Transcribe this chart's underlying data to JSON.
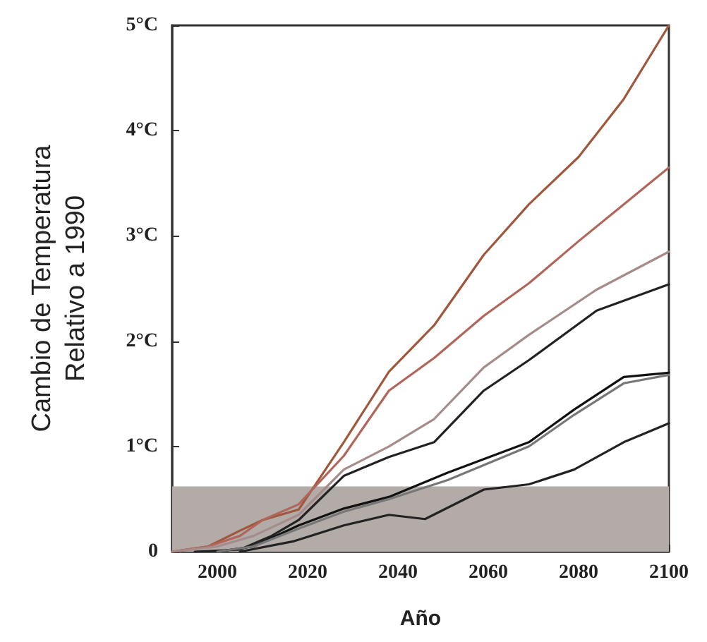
{
  "chart_data": {
    "type": "line",
    "xlabel": "Año",
    "ylabel": "Cambio de Temperatura\nRelativo a 1990",
    "xlim": [
      1990,
      2100
    ],
    "ylim": [
      0,
      5
    ],
    "xticks": [
      2000,
      2020,
      2040,
      2060,
      2080,
      2100
    ],
    "yticks": [
      {
        "value": 0,
        "label": "0"
      },
      {
        "value": 1,
        "label": "1°C"
      },
      {
        "value": 2,
        "label": "2°C"
      },
      {
        "value": 3,
        "label": "3°C"
      },
      {
        "value": 4,
        "label": "4°C"
      },
      {
        "value": 5,
        "label": "5°C"
      }
    ],
    "grid": false,
    "marker": "none",
    "line_style": "solid",
    "bands": [
      {
        "axis": "y",
        "from": 0,
        "to": 0.62,
        "color": "#b3aba8"
      }
    ],
    "series": [
      {
        "color": "#a0583c",
        "x": [
          1990,
          1998,
          2005,
          2010,
          2018,
          2028,
          2038,
          2048,
          2059,
          2069,
          2080,
          2090,
          2100
        ],
        "values": [
          0,
          0.05,
          0.2,
          0.3,
          0.4,
          1.04,
          1.71,
          2.15,
          2.82,
          3.3,
          3.75,
          4.3,
          5.0
        ]
      },
      {
        "color": "#b0665a",
        "x": [
          1990,
          1998,
          2005,
          2010,
          2018,
          2028,
          2038,
          2048,
          2059,
          2069,
          2080,
          2090,
          2100
        ],
        "values": [
          0,
          0.05,
          0.15,
          0.3,
          0.45,
          0.91,
          1.53,
          1.84,
          2.24,
          2.55,
          2.95,
          3.3,
          3.65
        ]
      },
      {
        "color": "#a58c8a",
        "x": [
          1990,
          2000,
          2008,
          2018,
          2028,
          2038,
          2048,
          2059,
          2069,
          2084,
          2100
        ],
        "values": [
          0,
          0.05,
          0.15,
          0.35,
          0.78,
          1.0,
          1.26,
          1.75,
          2.06,
          2.49,
          2.85
        ]
      },
      {
        "color": "#222222",
        "x": [
          1995,
          2005,
          2012,
          2018,
          2028,
          2038,
          2048,
          2059,
          2069,
          2084,
          2100
        ],
        "values": [
          0,
          0.02,
          0.15,
          0.3,
          0.72,
          0.9,
          1.04,
          1.53,
          1.82,
          2.29,
          2.54
        ]
      },
      {
        "color": "#111111",
        "x": [
          2000,
          2008,
          2018,
          2028,
          2038,
          2051,
          2069,
          2079,
          2090,
          2100
        ],
        "values": [
          0,
          0.05,
          0.25,
          0.41,
          0.52,
          0.75,
          1.04,
          1.35,
          1.66,
          1.7
        ]
      },
      {
        "color": "#777777",
        "x": [
          2000,
          2008,
          2018,
          2028,
          2038,
          2051,
          2069,
          2079,
          2090,
          2100
        ],
        "values": [
          0,
          0.05,
          0.22,
          0.38,
          0.5,
          0.68,
          1.0,
          1.3,
          1.6,
          1.68
        ]
      },
      {
        "color": "#222222",
        "x": [
          2005,
          2017,
          2028,
          2038,
          2046,
          2059,
          2069,
          2079,
          2090,
          2100
        ],
        "values": [
          0,
          0.1,
          0.25,
          0.35,
          0.31,
          0.59,
          0.64,
          0.78,
          1.04,
          1.22
        ]
      }
    ]
  }
}
